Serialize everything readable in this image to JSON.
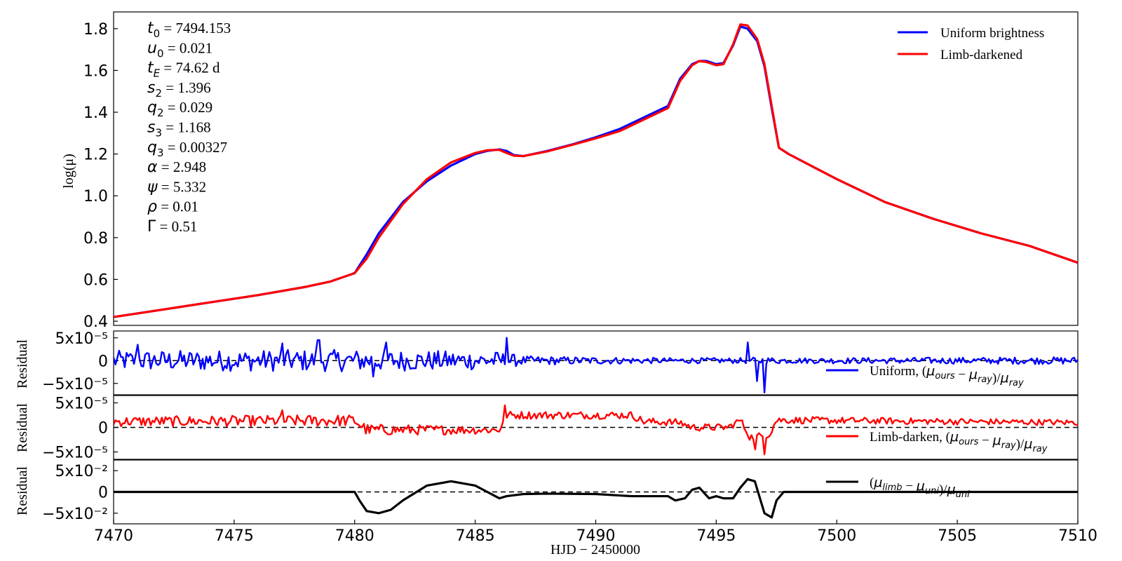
{
  "chart_data": [
    {
      "type": "line",
      "panel": "main",
      "ylabel": "log(μ)",
      "xlim": [
        7470,
        7510
      ],
      "ylim": [
        0.38,
        1.88
      ],
      "yticks": [
        0.4,
        0.6,
        0.8,
        1.0,
        1.2,
        1.4,
        1.6,
        1.8
      ],
      "ytick_labels": [
        "0.4",
        "0.6",
        "0.8",
        "1.0",
        "1.2",
        "1.4",
        "1.6",
        "1.8"
      ],
      "legend_position": "top-right",
      "series": [
        {
          "name": "Uniform brightness",
          "color": "#0000ff",
          "x": [
            7470,
            7472,
            7474,
            7476,
            7478,
            7479,
            7480,
            7480.5,
            7481,
            7482,
            7483,
            7484,
            7485,
            7485.5,
            7486,
            7486.3,
            7486.6,
            7487,
            7488,
            7489,
            7490,
            7491,
            7492,
            7493,
            7493.5,
            7494,
            7494.3,
            7494.6,
            7495,
            7495.3,
            7495.7,
            7496,
            7496.3,
            7496.7,
            7497,
            7497.3,
            7497.6,
            7498,
            7499,
            7500,
            7502,
            7504,
            7506,
            7508,
            7510
          ],
          "y": [
            0.42,
            0.455,
            0.49,
            0.525,
            0.565,
            0.59,
            0.63,
            0.72,
            0.82,
            0.97,
            1.07,
            1.145,
            1.2,
            1.215,
            1.222,
            1.215,
            1.195,
            1.19,
            1.215,
            1.245,
            1.28,
            1.32,
            1.375,
            1.43,
            1.56,
            1.63,
            1.645,
            1.645,
            1.63,
            1.635,
            1.72,
            1.81,
            1.8,
            1.74,
            1.62,
            1.42,
            1.23,
            1.2,
            1.14,
            1.08,
            0.97,
            0.89,
            0.82,
            0.76,
            0.68
          ]
        },
        {
          "name": "Limb-darkened",
          "color": "#ff0000",
          "x": [
            7470,
            7472,
            7474,
            7476,
            7478,
            7479,
            7480,
            7480.5,
            7481,
            7482,
            7483,
            7484,
            7485,
            7485.5,
            7486,
            7486.3,
            7486.6,
            7487,
            7488,
            7489,
            7490,
            7491,
            7492,
            7493,
            7493.5,
            7494,
            7494.3,
            7494.6,
            7495,
            7495.3,
            7495.7,
            7496,
            7496.3,
            7496.7,
            7497,
            7497.3,
            7497.6,
            7498,
            7499,
            7500,
            7502,
            7504,
            7506,
            7508,
            7510
          ],
          "y": [
            0.42,
            0.455,
            0.49,
            0.525,
            0.565,
            0.59,
            0.63,
            0.7,
            0.8,
            0.96,
            1.08,
            1.16,
            1.205,
            1.218,
            1.22,
            1.205,
            1.192,
            1.19,
            1.213,
            1.243,
            1.275,
            1.31,
            1.365,
            1.42,
            1.55,
            1.625,
            1.645,
            1.64,
            1.625,
            1.63,
            1.725,
            1.82,
            1.815,
            1.75,
            1.63,
            1.43,
            1.23,
            1.2,
            1.14,
            1.08,
            0.97,
            0.89,
            0.82,
            0.76,
            0.68
          ]
        }
      ],
      "annotations": [
        {
          "sym": "t",
          "sub": "0",
          "italic_sym": true,
          "value": " = 7494.153"
        },
        {
          "sym": "u",
          "sub": "0",
          "italic_sym": true,
          "value": " = 0.021"
        },
        {
          "sym": "t",
          "sub": "E",
          "italic_sym": true,
          "value": " = 74.62 d"
        },
        {
          "sym": "s",
          "sub": "2",
          "italic_sym": true,
          "value": " = 1.396"
        },
        {
          "sym": "q",
          "sub": "2",
          "italic_sym": true,
          "value": " = 0.029"
        },
        {
          "sym": "s",
          "sub": "3",
          "italic_sym": true,
          "value": " = 1.168"
        },
        {
          "sym": "q",
          "sub": "3",
          "italic_sym": true,
          "value": " = 0.00327"
        },
        {
          "sym": "α",
          "sub": "",
          "italic_sym": true,
          "value": " = 2.948"
        },
        {
          "sym": "ψ",
          "sub": "",
          "italic_sym": true,
          "value": " = 5.332"
        },
        {
          "sym": "ρ",
          "sub": "",
          "italic_sym": true,
          "value": " = 0.01"
        },
        {
          "sym": "Γ",
          "sub": "",
          "italic_sym": false,
          "value": " = 0.51"
        }
      ]
    },
    {
      "type": "line",
      "panel": "residual-uniform",
      "ylabel": "Residual",
      "xlim": [
        7470,
        7510
      ],
      "ylim": [
        -7.5e-05,
        6.5e-05
      ],
      "yticks": [
        5e-05,
        0,
        -5e-05
      ],
      "ytick_labels": [
        "5x10⁻⁵",
        "0",
        "−5x10⁻⁵"
      ],
      "zero_line": "dashed",
      "legend_position": "bottom-right",
      "series": [
        {
          "name": "Uniform, (μ_ours − μ_ray)/μ_ray",
          "color": "#0000ff",
          "pattern": "noise",
          "baseline": [
            [
              7470,
              0
            ],
            [
              7510,
              0
            ]
          ],
          "envelope": [
            [
              7470,
              2.2e-05
            ],
            [
              7480,
              2.4e-05
            ],
            [
              7486,
              2e-05
            ],
            [
              7487,
              1e-05
            ],
            [
              7493,
              6e-06
            ],
            [
              7496,
              6e-06
            ],
            [
              7497,
              8e-06
            ],
            [
              7498,
              6e-06
            ],
            [
              7510,
              8e-06
            ]
          ],
          "spikes": [
            [
              7471,
              3.5e-05
            ],
            [
              7477,
              3.8e-05
            ],
            [
              7478.5,
              4.5e-05
            ],
            [
              7480.8,
              -3.5e-05
            ],
            [
              7481.3,
              4e-05
            ],
            [
              7486.3,
              5e-05
            ],
            [
              7496.3,
              4e-05
            ],
            [
              7496.7,
              -4.5e-05
            ],
            [
              7497,
              -7e-05
            ]
          ]
        }
      ]
    },
    {
      "type": "line",
      "panel": "residual-limb",
      "ylabel": "Residual",
      "xlim": [
        7470,
        7510
      ],
      "ylim": [
        -6.5e-05,
        6.5e-05
      ],
      "yticks": [
        5e-05,
        0,
        -5e-05
      ],
      "ytick_labels": [
        "5x10⁻⁵",
        "0",
        "−5x10⁻⁵"
      ],
      "zero_line": "dashed",
      "legend_position": "bottom-right",
      "series": [
        {
          "name": "Limb-darken, (μ_ours − μ_ray)/μ_ray",
          "color": "#ff0000",
          "pattern": "noise",
          "baseline": [
            [
              7470,
              1.2e-05
            ],
            [
              7480,
              1.4e-05
            ],
            [
              7480.5,
              -5e-06
            ],
            [
              7486,
              -5e-06
            ],
            [
              7486.3,
              2.5e-05
            ],
            [
              7491.5,
              2.5e-05
            ],
            [
              7492,
              1.2e-05
            ],
            [
              7493.5,
              1e-05
            ],
            [
              7494,
              0
            ],
            [
              7495.5,
              0
            ],
            [
              7496,
              1.5e-05
            ],
            [
              7496.4,
              -2e-05
            ],
            [
              7497.2,
              -1.5e-05
            ],
            [
              7497.5,
              1.5e-05
            ],
            [
              7510,
              1e-05
            ]
          ],
          "envelope": [
            [
              7470,
              1e-05
            ],
            [
              7480,
              1.2e-05
            ],
            [
              7486,
              8e-06
            ],
            [
              7487,
              8e-06
            ],
            [
              7510,
              6e-06
            ]
          ],
          "spikes": [
            [
              7477,
              3.5e-05
            ],
            [
              7486.2,
              4.5e-05
            ],
            [
              7496.6,
              -4.5e-05
            ],
            [
              7497,
              -5.5e-05
            ]
          ]
        }
      ]
    },
    {
      "type": "line",
      "panel": "residual-difference",
      "ylabel": "Residual",
      "xlabel": "HJD − 2450000",
      "xlim": [
        7470,
        7510
      ],
      "ylim": [
        -0.075,
        0.075
      ],
      "xticks": [
        7470,
        7475,
        7480,
        7485,
        7490,
        7495,
        7500,
        7505,
        7510
      ],
      "xtick_labels": [
        "7470",
        "7475",
        "7480",
        "7485",
        "7490",
        "7495",
        "7500",
        "7505",
        "7510"
      ],
      "yticks": [
        0.05,
        0,
        -0.05
      ],
      "ytick_labels": [
        "5x10⁻²",
        "0",
        "−5x10⁻²"
      ],
      "zero_line": "dashed",
      "legend_position": "top-right",
      "series": [
        {
          "name": "(μ_limb − μ_uni)/μ_uni",
          "color": "#000000",
          "x": [
            7470,
            7480,
            7480.2,
            7480.5,
            7481,
            7481.5,
            7482,
            7483,
            7484,
            7485,
            7485.5,
            7486,
            7486.3,
            7487,
            7488,
            7490,
            7491.5,
            7492,
            7493,
            7493.3,
            7493.7,
            7494,
            7494.3,
            7494.7,
            7495,
            7495.3,
            7495.7,
            7496,
            7496.3,
            7496.6,
            7497,
            7497.3,
            7497.5,
            7497.8,
            7510
          ],
          "y": [
            0,
            0,
            -0.02,
            -0.045,
            -0.05,
            -0.042,
            -0.02,
            0.015,
            0.025,
            0.015,
            0.0,
            -0.015,
            -0.01,
            -0.005,
            -0.004,
            -0.005,
            -0.01,
            -0.01,
            -0.01,
            -0.02,
            -0.015,
            0.005,
            0.01,
            -0.015,
            -0.01,
            -0.015,
            -0.015,
            0.01,
            0.03,
            0.025,
            -0.05,
            -0.06,
            -0.02,
            0,
            0
          ]
        }
      ]
    }
  ]
}
